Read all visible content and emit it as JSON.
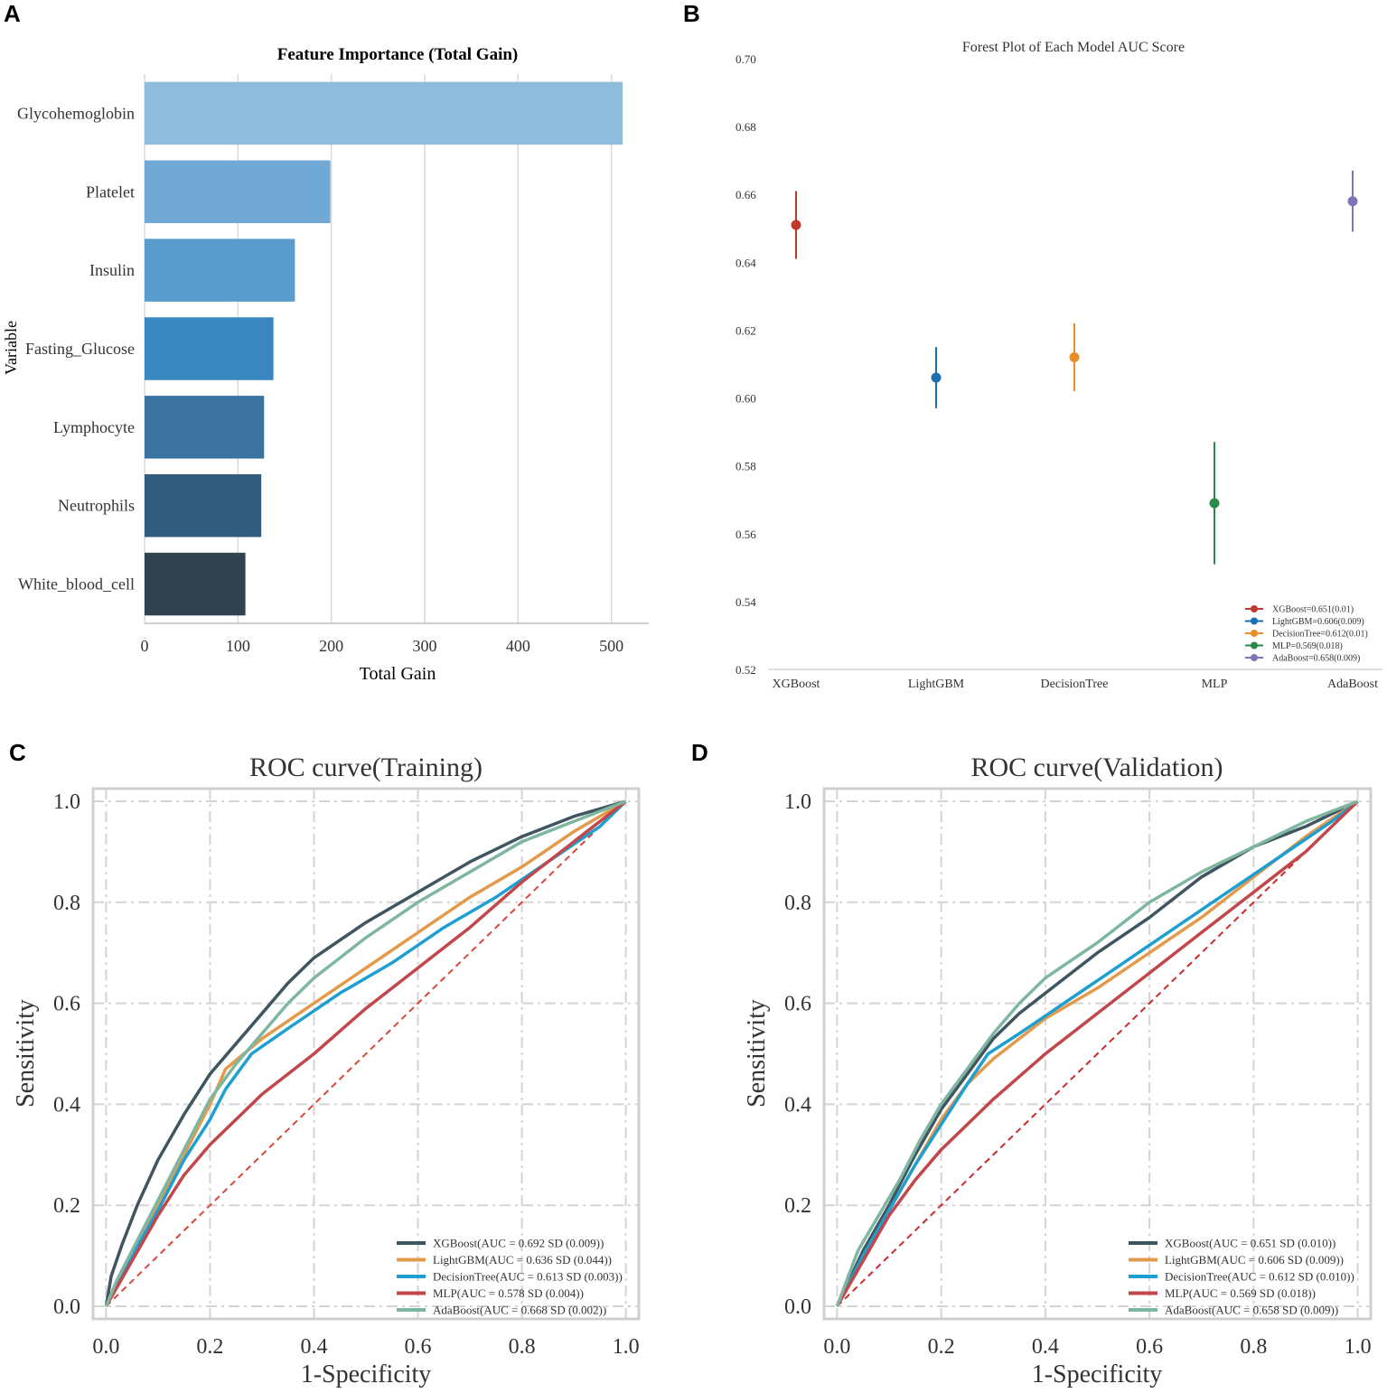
{
  "panel_labels": [
    "A",
    "B",
    "C",
    "D"
  ],
  "chart_data": [
    {
      "type": "bar",
      "orientation": "horizontal",
      "title": "Feature Importance (Total Gain)",
      "xlabel": "Total Gain",
      "ylabel": "Variable",
      "xlim": [
        0,
        540
      ],
      "xticks": [
        0,
        100,
        200,
        300,
        400,
        500
      ],
      "xtick_labels": [
        "0",
        "100",
        "200",
        "300",
        "400",
        "500"
      ],
      "grid": "vertical",
      "categories": [
        "Glycohemoglobin",
        "Platelet",
        "Insulin",
        "Fasting_Glucose",
        "Lymphocyte",
        "Neutrophils",
        "White_blood_cell"
      ],
      "values": [
        512,
        199,
        161,
        138,
        128,
        125,
        108
      ],
      "colors": [
        "#8fbcda",
        "#72a9d4",
        "#5a9ccd",
        "#3a87c0",
        "#3b73a0",
        "#335b7c",
        "#31434f"
      ]
    },
    {
      "type": "scatter",
      "subtype": "forest",
      "title": "Forest Plot of Each Model AUC Score",
      "ylim": [
        0.52,
        0.7
      ],
      "yticks": [
        0.52,
        0.54,
        0.56,
        0.58,
        0.6,
        0.62,
        0.64,
        0.66,
        0.68,
        0.7
      ],
      "ytick_labels": [
        "0.52",
        "0.54",
        "0.56",
        "0.58",
        "0.60",
        "0.62",
        "0.64",
        "0.66",
        "0.68",
        "0.70"
      ],
      "categories": [
        "XGBoost",
        "LightGBM",
        "DecisionTree",
        "MLP",
        "AdaBoost"
      ],
      "values": [
        0.651,
        0.606,
        0.612,
        0.569,
        0.658
      ],
      "errors": [
        0.01,
        0.009,
        0.01,
        0.018,
        0.009
      ],
      "colors": [
        "#c0392b",
        "#1a6fb5",
        "#e58e2b",
        "#2a8a4a",
        "#7f74b6"
      ],
      "legend": [
        "XGBoost=0.651(0.01)",
        "LightGBM=0.606(0.009)",
        "DecisionTree=0.612(0.01)",
        "MLP=0.569(0.018)",
        "AdaBoost=0.658(0.009)"
      ],
      "legend_position": "bottom-right"
    },
    {
      "type": "line",
      "title": "ROC curve(Training)",
      "xlabel": "1-Specificity",
      "ylabel": "Sensitivity",
      "xlim": [
        -0.025,
        1.025
      ],
      "ylim": [
        -0.025,
        1.025
      ],
      "ticks": [
        0,
        0.2,
        0.4,
        0.6,
        0.8,
        1.0
      ],
      "tick_labels": [
        "0.0",
        "0.2",
        "0.4",
        "0.6",
        "0.8",
        "1.0"
      ],
      "legend_position": "lower-right",
      "series": [
        {
          "name": "XGBoost(AUC = 0.692 SD (0.009))",
          "color": "#3f5560",
          "x": [
            0,
            0.01,
            0.03,
            0.06,
            0.1,
            0.15,
            0.2,
            0.25,
            0.3,
            0.35,
            0.4,
            0.5,
            0.6,
            0.7,
            0.8,
            0.9,
            1.0
          ],
          "y": [
            0,
            0.06,
            0.12,
            0.2,
            0.29,
            0.38,
            0.46,
            0.52,
            0.58,
            0.64,
            0.69,
            0.76,
            0.82,
            0.88,
            0.93,
            0.97,
            1.0
          ]
        },
        {
          "name": "LightGBM(AUC = 0.636 SD (0.044))",
          "color": "#e39a4a",
          "x": [
            0,
            0.05,
            0.1,
            0.15,
            0.2,
            0.23,
            0.3,
            0.4,
            0.5,
            0.6,
            0.7,
            0.8,
            0.9,
            1.0
          ],
          "y": [
            0,
            0.1,
            0.2,
            0.3,
            0.4,
            0.47,
            0.53,
            0.6,
            0.67,
            0.74,
            0.81,
            0.87,
            0.94,
            1.0
          ]
        },
        {
          "name": "DecisionTree(AUC = 0.613 SD (0.003))",
          "color": "#1f9fd1",
          "x": [
            0,
            0.05,
            0.1,
            0.15,
            0.2,
            0.23,
            0.28,
            0.35,
            0.45,
            0.55,
            0.65,
            0.75,
            0.85,
            0.95,
            1.0
          ],
          "y": [
            0,
            0.1,
            0.19,
            0.29,
            0.37,
            0.43,
            0.5,
            0.55,
            0.62,
            0.68,
            0.75,
            0.81,
            0.88,
            0.95,
            1.0
          ]
        },
        {
          "name": "MLP(AUC = 0.578 SD (0.004))",
          "color": "#c1474a",
          "x": [
            0,
            0.05,
            0.1,
            0.15,
            0.2,
            0.25,
            0.3,
            0.4,
            0.5,
            0.6,
            0.7,
            0.8,
            0.9,
            1.0
          ],
          "y": [
            0,
            0.09,
            0.18,
            0.26,
            0.32,
            0.37,
            0.42,
            0.5,
            0.59,
            0.67,
            0.75,
            0.84,
            0.92,
            1.0
          ]
        },
        {
          "name": "AdaBoost(AUC = 0.668 SD (0.002))",
          "color": "#7fb6a2",
          "x": [
            0,
            0.02,
            0.05,
            0.1,
            0.15,
            0.2,
            0.25,
            0.3,
            0.35,
            0.4,
            0.5,
            0.6,
            0.7,
            0.8,
            0.9,
            1.0
          ],
          "y": [
            0,
            0.05,
            0.11,
            0.21,
            0.31,
            0.41,
            0.48,
            0.54,
            0.6,
            0.65,
            0.73,
            0.8,
            0.86,
            0.92,
            0.96,
            1.0
          ]
        }
      ],
      "reference_line": {
        "x": [
          0,
          1
        ],
        "y": [
          0,
          1
        ],
        "color": "#d9463b",
        "style": "dashed"
      }
    },
    {
      "type": "line",
      "title": "ROC curve(Validation)",
      "xlabel": "1-Specificity",
      "ylabel": "Sensitivity",
      "xlim": [
        -0.025,
        1.025
      ],
      "ylim": [
        -0.025,
        1.025
      ],
      "ticks": [
        0,
        0.2,
        0.4,
        0.6,
        0.8,
        1.0
      ],
      "tick_labels": [
        "0.0",
        "0.2",
        "0.4",
        "0.6",
        "0.8",
        "1.0"
      ],
      "legend_position": "lower-right",
      "series": [
        {
          "name": "XGBoost(AUC = 0.651 SD (0.010))",
          "color": "#3f5560",
          "x": [
            0,
            0.05,
            0.1,
            0.15,
            0.2,
            0.25,
            0.3,
            0.35,
            0.4,
            0.5,
            0.6,
            0.7,
            0.8,
            0.9,
            1.0
          ],
          "y": [
            0,
            0.11,
            0.2,
            0.3,
            0.39,
            0.46,
            0.53,
            0.58,
            0.62,
            0.7,
            0.77,
            0.85,
            0.91,
            0.95,
            1.0
          ]
        },
        {
          "name": "LightGBM(AUC = 0.606 SD (0.009))",
          "color": "#e39a4a",
          "x": [
            0,
            0.05,
            0.1,
            0.15,
            0.2,
            0.25,
            0.3,
            0.4,
            0.5,
            0.6,
            0.7,
            0.8,
            0.9,
            1.0
          ],
          "y": [
            0,
            0.1,
            0.19,
            0.28,
            0.37,
            0.44,
            0.49,
            0.57,
            0.63,
            0.7,
            0.77,
            0.85,
            0.93,
            1.0
          ]
        },
        {
          "name": "DecisionTree(AUC = 0.612 SD (0.010))",
          "color": "#1f9fd1",
          "x": [
            0,
            0.05,
            0.1,
            0.15,
            0.2,
            0.25,
            0.29,
            0.35,
            0.45,
            0.55,
            0.65,
            0.75,
            0.85,
            0.95,
            1.0
          ],
          "y": [
            0,
            0.1,
            0.19,
            0.28,
            0.36,
            0.44,
            0.5,
            0.54,
            0.61,
            0.68,
            0.75,
            0.82,
            0.89,
            0.96,
            1.0
          ]
        },
        {
          "name": "MLP(AUC = 0.569 SD (0.018))",
          "color": "#c1474a",
          "x": [
            0,
            0.05,
            0.1,
            0.15,
            0.2,
            0.25,
            0.3,
            0.4,
            0.5,
            0.6,
            0.7,
            0.8,
            0.9,
            1.0
          ],
          "y": [
            0,
            0.09,
            0.18,
            0.25,
            0.31,
            0.36,
            0.41,
            0.5,
            0.58,
            0.66,
            0.74,
            0.82,
            0.9,
            1.0
          ]
        },
        {
          "name": "AdaBoost(AUC = 0.658 SD (0.009))",
          "color": "#7fb6a2",
          "x": [
            0,
            0.04,
            0.08,
            0.12,
            0.16,
            0.2,
            0.25,
            0.3,
            0.35,
            0.4,
            0.5,
            0.6,
            0.7,
            0.8,
            0.9,
            1.0
          ],
          "y": [
            0,
            0.11,
            0.18,
            0.25,
            0.33,
            0.4,
            0.47,
            0.54,
            0.6,
            0.65,
            0.72,
            0.8,
            0.86,
            0.91,
            0.96,
            1.0
          ]
        }
      ],
      "reference_line": {
        "x": [
          0,
          1
        ],
        "y": [
          0,
          1
        ],
        "color": "#cc2a2a",
        "style": "dashed"
      }
    }
  ]
}
